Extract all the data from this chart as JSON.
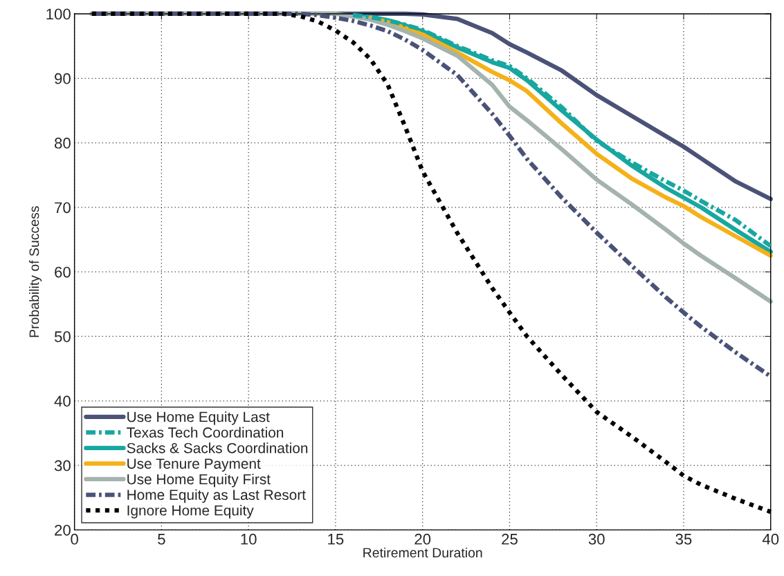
{
  "chart_data": {
    "type": "line",
    "xlabel": "Retirement Duration",
    "ylabel": "Probability of Success",
    "x": [
      1,
      12,
      13,
      14,
      15,
      16,
      17,
      18,
      19,
      20,
      22,
      24,
      25,
      26,
      28,
      30,
      32,
      34,
      35,
      36,
      38,
      40
    ],
    "xlim": [
      0,
      40
    ],
    "xticks": [
      0,
      5,
      10,
      15,
      20,
      25,
      30,
      35,
      40
    ],
    "ylim": [
      20,
      100
    ],
    "yticks": [
      20,
      30,
      40,
      50,
      60,
      70,
      80,
      90,
      100
    ],
    "grid": true,
    "legend": "bottom left",
    "marker": "none",
    "series": [
      {
        "name": "Use Home Equity Last",
        "color": "#4b5278",
        "line_style": "solid",
        "values": [
          100,
          100,
          100,
          100,
          100,
          100,
          100,
          100,
          100,
          99.9,
          99.2,
          97,
          95.3,
          94,
          91.2,
          87.4,
          84.2,
          81,
          79.4,
          77.6,
          74,
          71.3
        ]
      },
      {
        "name": "Texas Tech Coordination",
        "color": "#17a7a0",
        "line_style": "dashdot",
        "values": [
          null,
          null,
          null,
          null,
          null,
          99.8,
          99.5,
          99,
          98.3,
          97.5,
          95,
          92.8,
          91.9,
          90,
          85.5,
          80.3,
          77,
          74,
          72.6,
          71,
          68,
          64
        ]
      },
      {
        "name": "Sacks & Sacks Coordination",
        "color": "#17a7a0",
        "line_style": "solid",
        "values": [
          null,
          null,
          null,
          null,
          null,
          99.8,
          99.5,
          99,
          98.2,
          97.3,
          94.8,
          92.5,
          91.6,
          89.7,
          85,
          80.5,
          76.5,
          73,
          71.5,
          70,
          66.5,
          63.1
        ]
      },
      {
        "name": "Use Tenure Payment",
        "color": "#f5b119",
        "line_style": "solid",
        "values": [
          null,
          null,
          null,
          null,
          null,
          null,
          99.4,
          98.7,
          97.8,
          96.8,
          94,
          91,
          89.7,
          88,
          83,
          78.3,
          74.5,
          71.5,
          70.2,
          68.5,
          65.5,
          62.5
        ]
      },
      {
        "name": "Use Home Equity First",
        "color": "#a5b3ad",
        "line_style": "solid",
        "values": [
          100,
          100,
          100,
          100,
          100,
          99.6,
          99.1,
          98.3,
          97.3,
          96.2,
          93.5,
          89,
          85.6,
          83.5,
          79,
          74.3,
          70.5,
          66.5,
          64.4,
          62.5,
          59,
          55.4
        ]
      },
      {
        "name": "Home Equity as Last Resort",
        "color": "#4b5278",
        "line_style": "dashdot",
        "values": [
          100,
          100,
          100,
          99.8,
          99.4,
          98.9,
          98.2,
          97.3,
          96,
          94.4,
          90.5,
          84.5,
          81.1,
          77.5,
          71.5,
          66.1,
          61,
          56,
          53.7,
          51.5,
          47.5,
          43.8
        ]
      },
      {
        "name": "Ignore Home Equity",
        "color": "#000000",
        "line_style": "dotted",
        "values": [
          100,
          100,
          99.6,
          98.8,
          97.4,
          95.6,
          93,
          89,
          82.5,
          75.6,
          66,
          57.5,
          53.7,
          50,
          44,
          38.3,
          34.5,
          30.5,
          28.4,
          27,
          24.8,
          22.8
        ]
      }
    ]
  }
}
